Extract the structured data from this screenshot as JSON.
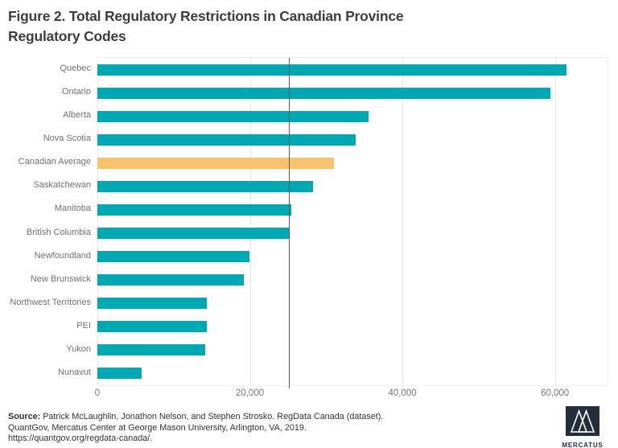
{
  "title_lines": [
    "Figure 2. Total Regulatory Restrictions in Canadian Province",
    "Regulatory Codes"
  ],
  "chart_data": {
    "type": "bar",
    "orientation": "horizontal",
    "title": "Figure 2. Total Regulatory Restrictions in Canadian Province Regulatory Codes",
    "categories": [
      "Quebec",
      "Ontario",
      "Alberta",
      "Nova Scotia",
      "Canadian Average",
      "Saskatchewan",
      "Manitoba",
      "British Columbia",
      "Newfoundland",
      "New Brunswick",
      "Northwest Territories",
      "PEI",
      "Yukon",
      "Nunavut"
    ],
    "values": [
      61500,
      59400,
      35600,
      33900,
      31000,
      28300,
      25400,
      25100,
      19900,
      19200,
      14400,
      14300,
      14100,
      5800
    ],
    "highlight_category": "Canadian Average",
    "colors": {
      "bar_default": "#00a8b4",
      "bar_highlight": "#f6c26b",
      "reference_line": "#54585a",
      "gridline": "#e6e6e6"
    },
    "x_axis": {
      "ticks": [
        0,
        20000,
        40000,
        60000
      ],
      "tick_labels": [
        "0",
        "20,000",
        "40,000",
        "60,000"
      ],
      "max": 66900
    },
    "reference_line": {
      "value": 25100
    },
    "grid": true,
    "legend": false
  },
  "footer": {
    "source_label": "Source:",
    "source_rest": " Patrick McLaughlin, Jonathon Nelson, and Stephen Strosko. RegData Canada (dataset).",
    "line2": "QuantGov, Mercatus Center at George Mason University,  Arlington, VA, 2019.",
    "line3": "https://quantgov.org/regdata-canada/."
  },
  "logo": {
    "text": "MERCATUS",
    "square_color": "#232e3d"
  }
}
